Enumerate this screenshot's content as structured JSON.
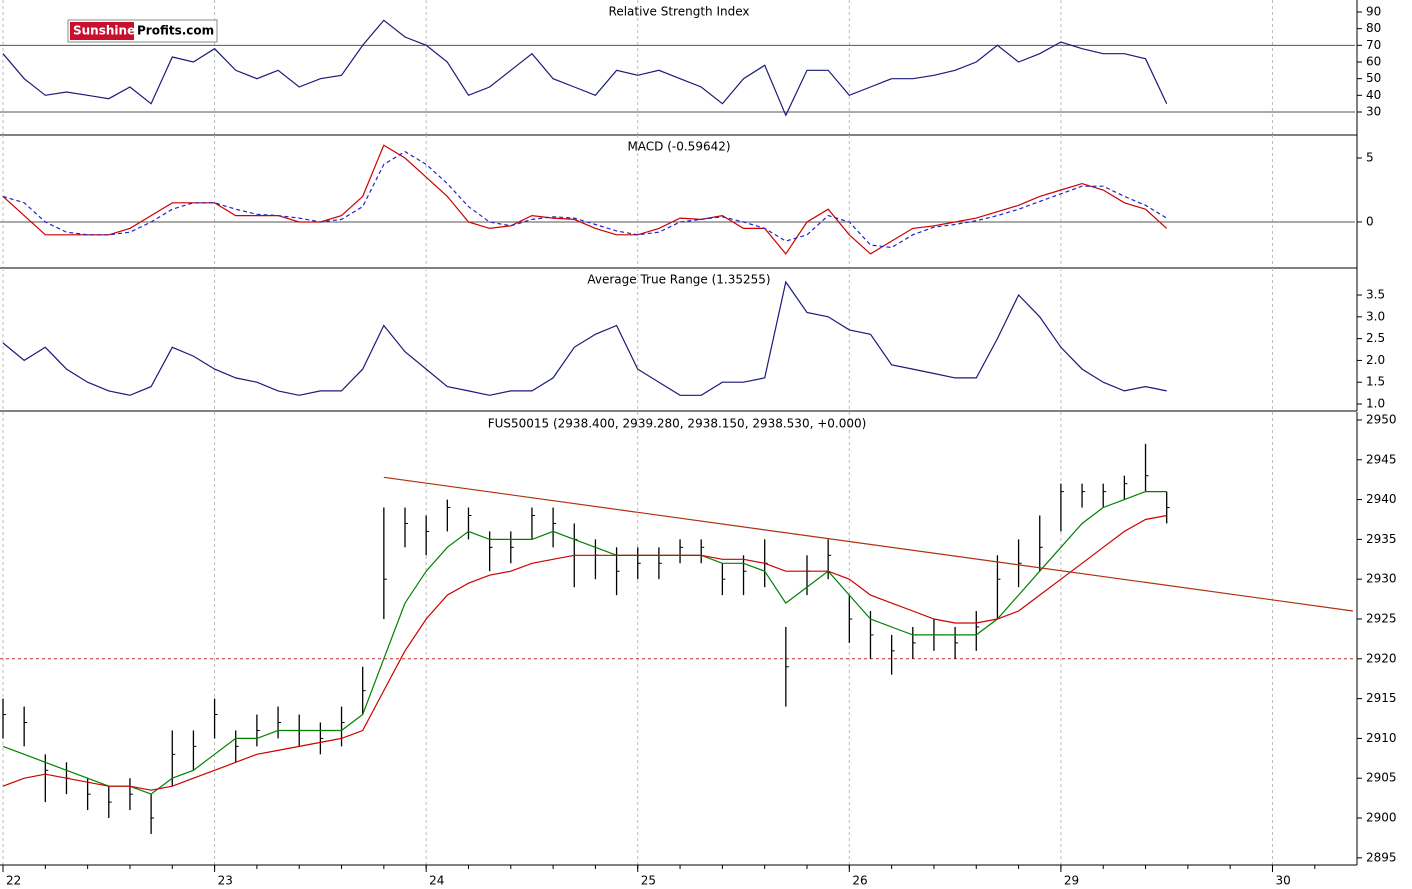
{
  "logo": {
    "part1": "Sunshine",
    "part2": "Profits.com"
  },
  "chart_data": [
    {
      "type": "line",
      "title": "Relative Strength Index",
      "ylim": [
        16.2,
        97.2
      ],
      "yticks": [
        30,
        40,
        50,
        60,
        70,
        80,
        90
      ],
      "hlines": [
        70,
        30
      ],
      "x": [
        0,
        0.1,
        0.2,
        0.3,
        0.4,
        0.5,
        0.6,
        0.7,
        0.8,
        0.9,
        1,
        1.1,
        1.2,
        1.3,
        1.4,
        1.5,
        1.6,
        1.7,
        1.8,
        1.9,
        2,
        2.1,
        2.2,
        2.3,
        2.4,
        2.5,
        2.6,
        2.7,
        2.8,
        2.9,
        3,
        3.1,
        3.2,
        3.3,
        3.4,
        3.5,
        3.6,
        3.7,
        3.8,
        3.9,
        4,
        4.1,
        4.2,
        4.3,
        4.4,
        4.5,
        4.6,
        4.7,
        4.8,
        4.9,
        5,
        5.1,
        5.2,
        5.3,
        5.4,
        5.5
      ],
      "series": [
        {
          "color": "#1a1a7a",
          "values": [
            65,
            50,
            40,
            42,
            40,
            38,
            45,
            35,
            63,
            60,
            68,
            55,
            50,
            55,
            45,
            50,
            52,
            70,
            85,
            75,
            70,
            60,
            40,
            45,
            55,
            65,
            50,
            45,
            40,
            55,
            52,
            55,
            50,
            45,
            35,
            50,
            58,
            28,
            55,
            55,
            40,
            45,
            50,
            50,
            52,
            55,
            60,
            70,
            60,
            65,
            72,
            68,
            65,
            65,
            62,
            35
          ]
        }
      ]
    },
    {
      "type": "line",
      "title": "MACD (-0.59642)",
      "ylim": [
        -3.6,
        6.8
      ],
      "yticks": [
        0,
        5
      ],
      "hlines": [
        0
      ],
      "x": [
        0,
        0.1,
        0.2,
        0.3,
        0.4,
        0.5,
        0.6,
        0.7,
        0.8,
        0.9,
        1,
        1.1,
        1.2,
        1.3,
        1.4,
        1.5,
        1.6,
        1.7,
        1.8,
        1.9,
        2,
        2.1,
        2.2,
        2.3,
        2.4,
        2.5,
        2.6,
        2.7,
        2.8,
        2.9,
        3,
        3.1,
        3.2,
        3.3,
        3.4,
        3.5,
        3.6,
        3.7,
        3.8,
        3.9,
        4,
        4.1,
        4.2,
        4.3,
        4.4,
        4.5,
        4.6,
        4.7,
        4.8,
        4.9,
        5,
        5.1,
        5.2,
        5.3,
        5.4,
        5.5
      ],
      "series": [
        {
          "color": "#cc0000",
          "values": [
            2,
            0.5,
            -1,
            -1,
            -1,
            -1,
            -0.5,
            0.5,
            1.5,
            1.5,
            1.5,
            0.5,
            0.5,
            0.5,
            0,
            0,
            0.5,
            2,
            6,
            5,
            3.5,
            2,
            0,
            -0.5,
            -0.3,
            0.5,
            0.3,
            0.2,
            -0.5,
            -1,
            -1,
            -0.5,
            0.3,
            0.2,
            0.5,
            -0.5,
            -0.5,
            -2.5,
            0,
            1,
            -1,
            -2.5,
            -1.5,
            -0.5,
            -0.3,
            0,
            0.3,
            0.8,
            1.3,
            2,
            2.5,
            3,
            2.5,
            1.5,
            1,
            -0.5
          ]
        },
        {
          "color": "#2222cc",
          "dashed": true,
          "values": [
            2,
            1.5,
            0,
            -0.8,
            -1,
            -1,
            -0.8,
            0,
            1,
            1.5,
            1.5,
            1,
            0.6,
            0.5,
            0.3,
            0,
            0.2,
            1.2,
            4.5,
            5.5,
            4.5,
            3,
            1.2,
            0,
            -0.3,
            0.2,
            0.4,
            0.3,
            -0.2,
            -0.7,
            -1,
            -0.8,
            0,
            0.2,
            0.4,
            0,
            -0.5,
            -1.5,
            -1,
            0.5,
            0,
            -1.8,
            -2,
            -1,
            -0.4,
            -0.2,
            0.1,
            0.5,
            1,
            1.6,
            2.2,
            2.8,
            2.8,
            2,
            1.3,
            0.3
          ]
        }
      ]
    },
    {
      "type": "line",
      "title": "Average True Range (1.35255)",
      "ylim": [
        0.84,
        4.12
      ],
      "yticks": [
        {
          "value": 1,
          "label": "1.0"
        },
        1.5,
        {
          "value": 2,
          "label": "2.0"
        },
        2.5,
        {
          "value": 3,
          "label": "3.0"
        },
        3.5
      ],
      "x": [
        0,
        0.1,
        0.2,
        0.3,
        0.4,
        0.5,
        0.6,
        0.7,
        0.8,
        0.9,
        1,
        1.1,
        1.2,
        1.3,
        1.4,
        1.5,
        1.6,
        1.7,
        1.8,
        1.9,
        2,
        2.1,
        2.2,
        2.3,
        2.4,
        2.5,
        2.6,
        2.7,
        2.8,
        2.9,
        3,
        3.1,
        3.2,
        3.3,
        3.4,
        3.5,
        3.6,
        3.7,
        3.8,
        3.9,
        4,
        4.1,
        4.2,
        4.3,
        4.4,
        4.5,
        4.6,
        4.7,
        4.8,
        4.9,
        5,
        5.1,
        5.2,
        5.3,
        5.4,
        5.5
      ],
      "series": [
        {
          "color": "#1a1a7a",
          "values": [
            2.4,
            2.0,
            2.3,
            1.8,
            1.5,
            1.3,
            1.2,
            1.4,
            2.3,
            2.1,
            1.8,
            1.6,
            1.5,
            1.3,
            1.2,
            1.3,
            1.3,
            1.8,
            2.8,
            2.2,
            1.8,
            1.4,
            1.3,
            1.2,
            1.3,
            1.3,
            1.6,
            2.3,
            2.6,
            2.8,
            1.8,
            1.5,
            1.2,
            1.2,
            1.5,
            1.5,
            1.6,
            3.8,
            3.1,
            3.0,
            2.7,
            2.6,
            1.9,
            1.8,
            1.7,
            1.6,
            1.6,
            2.5,
            3.5,
            3.0,
            2.3,
            1.8,
            1.5,
            1.3,
            1.4,
            1.3
          ]
        }
      ]
    },
    {
      "type": "ohlc",
      "title": "FUS50015 (2938.400, 2939.280, 2938.150, 2938.530, +0.000)",
      "ylim": [
        2894.1,
        2951
      ],
      "yticks": [
        2895,
        2900,
        2905,
        2910,
        2915,
        2920,
        2925,
        2930,
        2935,
        2940,
        2945,
        2950
      ],
      "hlines": [
        2920
      ],
      "xlim": [
        0,
        6.39
      ],
      "xticks": [
        {
          "value": 0,
          "label": "22"
        },
        {
          "value": 1,
          "label": "23"
        },
        {
          "value": 2,
          "label": "24"
        },
        {
          "value": 3,
          "label": "25"
        },
        {
          "value": 4,
          "label": "26"
        },
        {
          "value": 5,
          "label": "29"
        },
        {
          "value": 6,
          "label": "30"
        }
      ],
      "x": [
        0,
        0.1,
        0.2,
        0.3,
        0.4,
        0.5,
        0.6,
        0.7,
        0.8,
        0.9,
        1,
        1.1,
        1.2,
        1.3,
        1.4,
        1.5,
        1.6,
        1.7,
        1.8,
        1.9,
        2,
        2.1,
        2.2,
        2.3,
        2.4,
        2.5,
        2.6,
        2.7,
        2.8,
        2.9,
        3,
        3.1,
        3.2,
        3.3,
        3.4,
        3.5,
        3.6,
        3.7,
        3.8,
        3.9,
        4,
        4.1,
        4.2,
        4.3,
        4.4,
        4.5,
        4.6,
        4.7,
        4.8,
        4.9,
        5,
        5.1,
        5.2,
        5.3,
        5.4,
        5.5
      ],
      "high": [
        2915,
        2914,
        2908,
        2907,
        2905,
        2904,
        2905,
        2903,
        2911,
        2911,
        2915,
        2911,
        2913,
        2914,
        2913,
        2912,
        2914,
        2919,
        2939,
        2939,
        2938,
        2940,
        2939,
        2936,
        2936,
        2939,
        2939,
        2937,
        2935,
        2934,
        2934,
        2934,
        2935,
        2935,
        2932,
        2933,
        2935,
        2924,
        2933,
        2935,
        2928,
        2926,
        2923,
        2924,
        2925,
        2924,
        2926,
        2933,
        2935,
        2938,
        2942,
        2942,
        2942,
        2943,
        2947,
        2941
      ],
      "low": [
        2910,
        2909,
        2902,
        2903,
        2901,
        2900,
        2901,
        2898,
        2904,
        2906,
        2910,
        2907,
        2909,
        2910,
        2909,
        2908,
        2909,
        2913,
        2925,
        2934,
        2933,
        2936,
        2935,
        2931,
        2932,
        2935,
        2934,
        2929,
        2930,
        2928,
        2930,
        2930,
        2932,
        2932,
        2928,
        2928,
        2929,
        2914,
        2928,
        2930,
        2922,
        2920,
        2918,
        2920,
        2921,
        2920,
        2921,
        2925,
        2929,
        2931,
        2936,
        2939,
        2939,
        2940,
        2941,
        2937
      ],
      "close": [
        2913,
        2912,
        2906,
        2905,
        2903,
        2902,
        2903,
        2900,
        2908,
        2909,
        2913,
        2909,
        2911,
        2912,
        2911,
        2910,
        2912,
        2916,
        2930,
        2937,
        2936,
        2939,
        2938,
        2934,
        2934,
        2938,
        2937,
        2935,
        2933,
        2931,
        2932,
        2932,
        2934,
        2934,
        2930,
        2931,
        2932,
        2919,
        2931,
        2933,
        2925,
        2923,
        2921,
        2922,
        2923,
        2922,
        2924,
        2930,
        2932,
        2934,
        2941,
        2941,
        2941,
        2942,
        2943,
        2939
      ],
      "series": [
        {
          "color": "#008000",
          "values": [
            2909,
            2908,
            2907,
            2906,
            2905,
            2904,
            2904,
            2903,
            2905,
            2906,
            2908,
            2910,
            2910,
            2911,
            2911,
            2911,
            2911,
            2913,
            2920,
            2927,
            2931,
            2934,
            2936,
            2935,
            2935,
            2935,
            2936,
            2935,
            2934,
            2933,
            2933,
            2933,
            2933,
            2933,
            2932,
            2932,
            2931,
            2927,
            2929,
            2931,
            2928,
            2925,
            2924,
            2923,
            2923,
            2923,
            2923,
            2925,
            2928,
            2931,
            2934,
            2937,
            2939,
            2940,
            2941,
            2941
          ]
        },
        {
          "color": "#cc0000",
          "values": [
            2904,
            2905,
            2905.5,
            2905,
            2904.5,
            2904,
            2904,
            2903.5,
            2904,
            2905,
            2906,
            2907,
            2908,
            2908.5,
            2909,
            2909.5,
            2910,
            2911,
            2916,
            2921,
            2925,
            2928,
            2929.5,
            2930.5,
            2931,
            2932,
            2932.5,
            2933,
            2933,
            2933,
            2933,
            2933,
            2933,
            2933,
            2932.5,
            2932.5,
            2932,
            2931,
            2931,
            2931,
            2930,
            2928,
            2927,
            2926,
            2925,
            2924.5,
            2924.5,
            2925,
            2926,
            2928,
            2930,
            2932,
            2934,
            2936,
            2937.5,
            2938
          ]
        }
      ],
      "trendline": {
        "color": "#b03010",
        "x": [
          1.8,
          6.38
        ],
        "values": [
          2942.8,
          2926
        ]
      }
    }
  ]
}
